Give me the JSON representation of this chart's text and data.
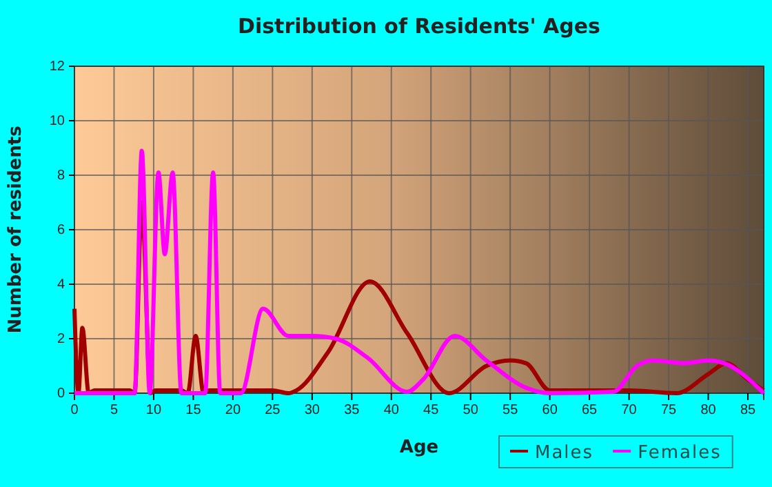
{
  "chart_data": {
    "type": "line",
    "title": "Distribution of Residents' Ages",
    "xlabel": "Age",
    "ylabel": "Number of residents",
    "xlim": [
      0,
      87
    ],
    "ylim": [
      0,
      12
    ],
    "xticks": [
      0,
      5,
      10,
      15,
      20,
      25,
      30,
      35,
      40,
      45,
      50,
      55,
      60,
      65,
      70,
      75,
      80,
      85
    ],
    "yticks": [
      0,
      2,
      4,
      6,
      8,
      10,
      12
    ],
    "grid": true,
    "legend": "bottom right",
    "series": [
      {
        "name": "Males",
        "color": "#a00000",
        "x": [
          0,
          0.5,
          1,
          1.8,
          2.5,
          7,
          7.6,
          8.5,
          9.6,
          10.2,
          13.5,
          14.3,
          15.3,
          16.3,
          17,
          25,
          27,
          28,
          32,
          37.3,
          42,
          47.3,
          52,
          55,
          57,
          60,
          70,
          76,
          80,
          82.3,
          85,
          87
        ],
        "values": [
          3.1,
          0,
          2.4,
          0,
          0.1,
          0.1,
          0,
          7,
          0,
          0.1,
          0.1,
          0,
          2.1,
          0,
          0.1,
          0.1,
          0,
          0.1,
          1.5,
          4.1,
          2.2,
          0,
          1,
          1.2,
          1.1,
          0.1,
          0.1,
          0,
          0.7,
          1.1,
          0.5,
          0.1
        ]
      },
      {
        "name": "Females",
        "color": "#ff00ff",
        "x": [
          0,
          7,
          7.6,
          8.5,
          9.5,
          10.6,
          11.4,
          12.4,
          13.5,
          16.5,
          17.5,
          18.4,
          21,
          23.8,
          27,
          30,
          33,
          37,
          42,
          44,
          48,
          52,
          57,
          60,
          68,
          71,
          73,
          77,
          80,
          82,
          87
        ],
        "values": [
          0,
          0,
          0,
          8.9,
          0,
          8.1,
          5.1,
          8.1,
          0,
          0,
          8.1,
          0,
          0,
          3.1,
          2.1,
          2.1,
          2,
          1.3,
          0.05,
          0.5,
          2.1,
          1.2,
          0.2,
          0,
          0.05,
          1,
          1.2,
          1.1,
          1.2,
          1.1,
          0
        ]
      }
    ]
  }
}
